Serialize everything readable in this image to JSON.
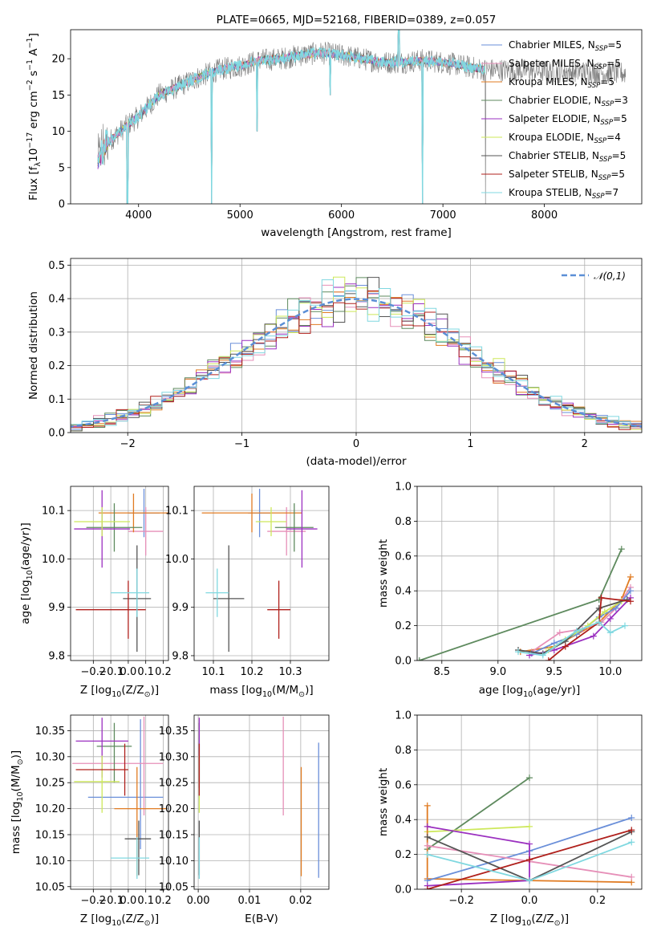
{
  "colors": {
    "chabrier_miles": "#6a8fd9",
    "salpeter_miles": "#e68fb8",
    "kroupa_miles": "#e07b22",
    "chabrier_elodie": "#5e8a5e",
    "salpeter_elodie": "#9b30c0",
    "kroupa_elodie": "#cde85a",
    "chabrier_stelib": "#555555",
    "salpeter_stelib": "#b0201c",
    "kroupa_stelib": "#80d8e0"
  },
  "chart_data": [
    {
      "id": "spectrum",
      "type": "line",
      "title": "PLATE=0665, MJD=52168, FIBERID=0389, z=0.057",
      "xlabel": "wavelength [Angstrom, rest frame]",
      "ylabel_parts": [
        "Flux [f",
        "λ",
        "10",
        "−17",
        " erg cm",
        "−2",
        " s",
        "−1",
        " A",
        "−1",
        "]"
      ],
      "xlim": [
        3330,
        8960
      ],
      "ylim": [
        0,
        24
      ],
      "xticks": [
        4000,
        5000,
        6000,
        7000,
        8000
      ],
      "yticks": [
        0,
        5,
        10,
        15,
        20
      ],
      "grid": false,
      "legend": "top-right",
      "series": [
        {
          "key": "chabrier_miles",
          "name": "Chabrier MILES, N",
          "sub": "SSP",
          "suffix": "=5"
        },
        {
          "key": "salpeter_miles",
          "name": "Salpeter MILES, N",
          "sub": "SSP",
          "suffix": "=5"
        },
        {
          "key": "kroupa_miles",
          "name": "Kroupa MILES, N",
          "sub": "SSP",
          "suffix": "=5"
        },
        {
          "key": "chabrier_elodie",
          "name": "Chabrier ELODIE, N",
          "sub": "SSP",
          "suffix": "=3"
        },
        {
          "key": "salpeter_elodie",
          "name": "Salpeter ELODIE, N",
          "sub": "SSP",
          "suffix": "=5"
        },
        {
          "key": "kroupa_elodie",
          "name": "Kroupa ELODIE, N",
          "sub": "SSP",
          "suffix": "=4"
        },
        {
          "key": "chabrier_stelib",
          "name": "Chabrier STELIB, N",
          "sub": "SSP",
          "suffix": "=5"
        },
        {
          "key": "salpeter_stelib",
          "name": "Salpeter STELIB, N",
          "sub": "SSP",
          "suffix": "=5"
        },
        {
          "key": "kroupa_stelib",
          "name": "Kroupa STELIB, N",
          "sub": "SSP",
          "suffix": "=7"
        }
      ],
      "continuum": {
        "x": [
          3600,
          3700,
          3900,
          4000,
          4200,
          4400,
          4600,
          4800,
          5000,
          5200,
          5400,
          5600,
          5800,
          6000,
          6200,
          6400,
          6600,
          6800,
          7000,
          7200,
          7400
        ],
        "y": [
          6,
          8.5,
          11,
          12,
          15,
          16.2,
          17.5,
          18.5,
          19,
          19.8,
          20,
          20.5,
          20.8,
          20.5,
          20,
          19.5,
          19.5,
          19.8,
          19.5,
          19,
          18.5
        ]
      },
      "data_range": [
        3600,
        8800
      ],
      "model_range": [
        3600,
        7420
      ],
      "dips": [
        {
          "x": 3890,
          "y": 0
        },
        {
          "x": 4720,
          "y": 0
        },
        {
          "x": 5170,
          "y": 10
        },
        {
          "x": 5890,
          "y": 15
        },
        {
          "x": 6800,
          "y": 0
        },
        {
          "x": 7420,
          "y": 0
        }
      ]
    },
    {
      "id": "residuals",
      "type": "line",
      "xlabel": "(data-model)/error",
      "ylabel": "Normed distribution",
      "xlim": [
        -2.5,
        2.5
      ],
      "ylim": [
        0,
        0.52
      ],
      "xticks": [
        -2,
        -1,
        0,
        1,
        2
      ],
      "yticks": [
        0,
        0.1,
        0.2,
        0.3,
        0.4,
        0.5
      ],
      "grid": true,
      "legend": "top-right",
      "reference": {
        "name": "𝒩(0,1)",
        "mu": 0,
        "sigma": 1
      }
    },
    {
      "id": "age_vs_Z",
      "type": "scatter",
      "xlabel_parts": [
        "Z [log",
        "10",
        "(Z/Z",
        "⊙",
        ")]"
      ],
      "ylabel_parts": [
        "age  [log",
        "10",
        "(age/yr)]"
      ],
      "xlim": [
        -0.33,
        0.23
      ],
      "ylim": [
        9.79,
        10.15
      ],
      "xticks": [
        -0.2,
        -0.1,
        0.0,
        0.1,
        0.2
      ],
      "yticks": [
        9.8,
        9.9,
        10.0,
        10.1
      ],
      "grid": true,
      "points": [
        {
          "key": "chabrier_miles",
          "x": 0.09,
          "y": 10.095,
          "xerr": [
            0.09,
            0.09
          ],
          "yerr": [
            0.05,
            0.05
          ]
        },
        {
          "key": "salpeter_miles",
          "x": 0.1,
          "y": 10.057,
          "xerr": [
            0.1,
            0.1
          ],
          "yerr": [
            0.05,
            0.05
          ]
        },
        {
          "key": "kroupa_miles",
          "x": 0.03,
          "y": 10.095,
          "xerr": [
            0.2,
            0.2
          ],
          "yerr": [
            0.04,
            0.04
          ]
        },
        {
          "key": "chabrier_elodie",
          "x": -0.08,
          "y": 10.065,
          "xerr": [
            0.16,
            0.16
          ],
          "yerr": [
            0.05,
            0.05
          ]
        },
        {
          "key": "salpeter_elodie",
          "x": -0.15,
          "y": 10.062,
          "xerr": [
            0.16,
            0.16
          ],
          "yerr": [
            0.08,
            0.08
          ]
        },
        {
          "key": "kroupa_elodie",
          "x": -0.15,
          "y": 10.077,
          "xerr": [
            0.16,
            0.16
          ],
          "yerr": [
            0.03,
            0.03
          ]
        },
        {
          "key": "chabrier_stelib",
          "x": 0.05,
          "y": 9.918,
          "xerr": [
            0.08,
            0.08
          ],
          "yerr": [
            0.11,
            0.11
          ]
        },
        {
          "key": "salpeter_stelib",
          "x": 0.0,
          "y": 9.895,
          "xerr": [
            0.3,
            0.1
          ],
          "yerr": [
            0.06,
            0.06
          ]
        },
        {
          "key": "kroupa_stelib",
          "x": 0.05,
          "y": 9.93,
          "xerr": [
            0.15,
            0.07
          ],
          "yerr": [
            0.05,
            0.05
          ]
        }
      ]
    },
    {
      "id": "age_vs_mass",
      "type": "scatter",
      "xlabel_parts": [
        "mass [log",
        "10",
        "(M/M",
        "⊙",
        ")]"
      ],
      "xlim": [
        10.05,
        10.4
      ],
      "ylim": [
        9.79,
        10.15
      ],
      "xticks": [
        10.1,
        10.2,
        10.3
      ],
      "xtick_labels": [
        "10.1",
        "10.2",
        "10.3"
      ],
      "yticks": [
        9.8,
        9.9,
        10.0,
        10.1
      ],
      "grid": true,
      "points": [
        {
          "key": "chabrier_miles",
          "x": 10.22,
          "y": 10.095,
          "xerr": [
            0.03,
            0.03
          ],
          "yerr": [
            0.05,
            0.05
          ]
        },
        {
          "key": "salpeter_miles",
          "x": 10.29,
          "y": 10.057,
          "xerr": [
            0.05,
            0.05
          ],
          "yerr": [
            0.05,
            0.05
          ]
        },
        {
          "key": "kroupa_miles",
          "x": 10.2,
          "y": 10.095,
          "xerr": [
            0.13,
            0.13
          ],
          "yerr": [
            0.04,
            0.04
          ]
        },
        {
          "key": "chabrier_elodie",
          "x": 10.31,
          "y": 10.065,
          "xerr": [
            0.05,
            0.05
          ],
          "yerr": [
            0.05,
            0.05
          ]
        },
        {
          "key": "salpeter_elodie",
          "x": 10.33,
          "y": 10.062,
          "xerr": [
            0.04,
            0.04
          ],
          "yerr": [
            0.08,
            0.08
          ]
        },
        {
          "key": "kroupa_elodie",
          "x": 10.25,
          "y": 10.077,
          "xerr": [
            0.04,
            0.04
          ],
          "yerr": [
            0.03,
            0.03
          ]
        },
        {
          "key": "chabrier_stelib",
          "x": 10.14,
          "y": 9.918,
          "xerr": [
            0.04,
            0.04
          ],
          "yerr": [
            0.11,
            0.11
          ]
        },
        {
          "key": "salpeter_stelib",
          "x": 10.27,
          "y": 9.895,
          "xerr": [
            0.03,
            0.03
          ],
          "yerr": [
            0.06,
            0.06
          ]
        },
        {
          "key": "kroupa_stelib",
          "x": 10.11,
          "y": 9.93,
          "xerr": [
            0.03,
            0.03
          ],
          "yerr": [
            0.05,
            0.05
          ]
        }
      ]
    },
    {
      "id": "mass_weight_vs_age",
      "type": "line",
      "xlabel_parts": [
        "age  [log",
        "10",
        "(age/yr)]"
      ],
      "ylabel": "mass weight",
      "xlim": [
        8.28,
        10.28
      ],
      "ylim": [
        0,
        1
      ],
      "xticks": [
        8.5,
        9.0,
        9.5,
        10.0
      ],
      "yticks": [
        0,
        0.2,
        0.4,
        0.6,
        0.8,
        1.0
      ],
      "grid": true,
      "series": [
        {
          "key": "chabrier_elodie",
          "x": [
            8.3,
            9.9,
            10.1
          ],
          "y": [
            0.0,
            0.35,
            0.64
          ]
        },
        {
          "key": "kroupa_miles",
          "x": [
            9.2,
            9.5,
            9.7,
            9.9,
            10.1,
            10.18
          ],
          "y": [
            0.05,
            0.08,
            0.15,
            0.22,
            0.35,
            0.48
          ]
        },
        {
          "key": "salpeter_miles",
          "x": [
            9.3,
            9.55,
            9.75,
            9.92,
            10.05,
            10.18
          ],
          "y": [
            0.05,
            0.16,
            0.18,
            0.22,
            0.3,
            0.42
          ]
        },
        {
          "key": "chabrier_miles",
          "x": [
            9.3,
            9.5,
            9.7,
            9.9,
            10.05,
            10.18
          ],
          "y": [
            0.04,
            0.1,
            0.15,
            0.25,
            0.3,
            0.4
          ]
        },
        {
          "key": "salpeter_elodie",
          "x": [
            9.28,
            9.5,
            9.85,
            10.0,
            10.18
          ],
          "y": [
            0.03,
            0.06,
            0.14,
            0.24,
            0.36
          ]
        },
        {
          "key": "kroupa_elodie",
          "x": [
            9.45,
            9.6,
            9.8,
            9.95,
            10.1
          ],
          "y": [
            0.06,
            0.12,
            0.2,
            0.28,
            0.34
          ]
        },
        {
          "key": "chabrier_stelib",
          "x": [
            9.18,
            9.4,
            9.6,
            9.9,
            10.15
          ],
          "y": [
            0.06,
            0.04,
            0.11,
            0.3,
            0.35
          ]
        },
        {
          "key": "salpeter_stelib",
          "x": [
            9.45,
            9.6,
            9.9,
            9.92,
            10.18
          ],
          "y": [
            0.0,
            0.08,
            0.22,
            0.36,
            0.34
          ]
        },
        {
          "key": "kroupa_stelib",
          "x": [
            9.18,
            9.4,
            9.7,
            9.9,
            10.0,
            10.13
          ],
          "y": [
            0.05,
            0.03,
            0.17,
            0.22,
            0.16,
            0.2
          ]
        }
      ]
    },
    {
      "id": "mass_vs_Z",
      "type": "scatter",
      "xlabel_parts": [
        "Z [log",
        "10",
        "(Z/Z",
        "⊙",
        ")]"
      ],
      "ylabel_parts": [
        "mass [log",
        "10",
        "(M/M",
        "⊙",
        ")]"
      ],
      "xlim": [
        -0.33,
        0.23
      ],
      "ylim": [
        10.045,
        10.38
      ],
      "xticks": [
        -0.2,
        -0.1,
        0.0,
        0.1,
        0.2
      ],
      "yticks": [
        10.05,
        10.1,
        10.15,
        10.2,
        10.25,
        10.3,
        10.35
      ],
      "grid": true,
      "points": [
        {
          "key": "chabrier_miles",
          "x": 0.07,
          "y": 10.222,
          "xerr": [
            0.3,
            0.13
          ],
          "yerr": [
            0.1,
            0.15
          ]
        },
        {
          "key": "salpeter_miles",
          "x": 0.09,
          "y": 10.287,
          "xerr": [
            0.41,
            0.11
          ],
          "yerr": [
            0.1,
            0.09
          ]
        },
        {
          "key": "kroupa_miles",
          "x": 0.05,
          "y": 10.2,
          "xerr": [
            0.13,
            0.17
          ],
          "yerr": [
            0.13,
            0.08
          ]
        },
        {
          "key": "chabrier_elodie",
          "x": -0.08,
          "y": 10.32,
          "xerr": [
            0.1,
            0.1
          ],
          "yerr": [
            0.07,
            0.045
          ]
        },
        {
          "key": "salpeter_elodie",
          "x": -0.15,
          "y": 10.33,
          "xerr": [
            0.15,
            0.15
          ],
          "yerr": [
            0.07,
            0.045
          ]
        },
        {
          "key": "kroupa_elodie",
          "x": -0.15,
          "y": 10.252,
          "xerr": [
            0.16,
            0.1
          ],
          "yerr": [
            0.06,
            0.05
          ]
        },
        {
          "key": "chabrier_stelib",
          "x": 0.06,
          "y": 10.142,
          "xerr": [
            0.08,
            0.07
          ],
          "yerr": [
            0.07,
            0.035
          ]
        },
        {
          "key": "salpeter_stelib",
          "x": -0.02,
          "y": 10.275,
          "xerr": [
            0.28,
            0.02
          ],
          "yerr": [
            0.05,
            0.05
          ]
        },
        {
          "key": "kroupa_stelib",
          "x": 0.05,
          "y": 10.105,
          "xerr": [
            0.15,
            0.07
          ],
          "yerr": [
            0.04,
            0.04
          ]
        }
      ]
    },
    {
      "id": "mass_vs_EBV",
      "type": "scatter",
      "xlabel": "E(B-V)",
      "xlim": [
        -0.0008,
        0.0255
      ],
      "ylim": [
        10.045,
        10.38
      ],
      "xticks": [
        0.0,
        0.01,
        0.02
      ],
      "yticks": [
        10.05,
        10.1,
        10.15,
        10.2,
        10.25,
        10.3,
        10.35
      ],
      "grid": true,
      "points": [
        {
          "key": "chabrier_miles",
          "x": 0.0235,
          "y": 10.222,
          "yerr": [
            0.155,
            0.105
          ]
        },
        {
          "key": "salpeter_miles",
          "x": 0.0166,
          "y": 10.287,
          "yerr": [
            0.1,
            0.09
          ]
        },
        {
          "key": "kroupa_miles",
          "x": 0.0201,
          "y": 10.2,
          "yerr": [
            0.13,
            0.08
          ]
        },
        {
          "key": "chabrier_elodie",
          "x": 0.0002,
          "y": 10.32,
          "yerr": [
            0.07,
            0.045
          ]
        },
        {
          "key": "salpeter_elodie",
          "x": 0.0002,
          "y": 10.33,
          "yerr": [
            0.09,
            0.045
          ]
        },
        {
          "key": "kroupa_elodie",
          "x": 0.0002,
          "y": 10.252,
          "yerr": [
            0.06,
            0.05
          ]
        },
        {
          "key": "chabrier_stelib",
          "x": 0.0002,
          "y": 10.142,
          "yerr": [
            0.07,
            0.035
          ]
        },
        {
          "key": "salpeter_stelib",
          "x": 0.0002,
          "y": 10.275,
          "yerr": [
            0.05,
            0.05
          ]
        },
        {
          "key": "kroupa_stelib",
          "x": 0.0002,
          "y": 10.105,
          "yerr": [
            0.04,
            0.04
          ]
        }
      ]
    },
    {
      "id": "mass_weight_vs_Z",
      "type": "line",
      "xlabel_parts": [
        "Z [log",
        "10",
        "(Z/Z",
        "⊙",
        ")]"
      ],
      "ylabel": "mass weight",
      "xlim": [
        -0.33,
        0.33
      ],
      "ylim": [
        0,
        1
      ],
      "xticks": [
        -0.2,
        0.0,
        0.2
      ],
      "yticks": [
        0,
        0.2,
        0.4,
        0.6,
        0.8,
        1.0
      ],
      "grid": true,
      "series": [
        {
          "key": "chabrier_elodie",
          "x": [
            -0.3,
            0.0
          ],
          "y": [
            0.23,
            0.64
          ]
        },
        {
          "key": "kroupa_elodie",
          "x": [
            -0.3,
            0.0
          ],
          "y": [
            0.33,
            0.36
          ]
        },
        {
          "key": "kroupa_miles",
          "x": [
            -0.3,
            -0.3,
            0.3
          ],
          "y": [
            0.48,
            0.06,
            0.04
          ]
        },
        {
          "key": "chabrier_miles",
          "x": [
            -0.3,
            0.0,
            0.3
          ],
          "y": [
            0.05,
            0.22,
            0.41
          ]
        },
        {
          "key": "salpeter_miles",
          "x": [
            -0.3,
            0.3
          ],
          "y": [
            0.25,
            0.07
          ]
        },
        {
          "key": "salpeter_elodie",
          "x": [
            -0.3,
            0.0,
            0.0,
            -0.3
          ],
          "y": [
            0.36,
            0.26,
            0.05,
            0.02
          ]
        },
        {
          "key": "chabrier_stelib",
          "x": [
            -0.3,
            0.0,
            0.3
          ],
          "y": [
            0.3,
            0.05,
            0.33
          ]
        },
        {
          "key": "salpeter_stelib",
          "x": [
            -0.3,
            0.0,
            0.3
          ],
          "y": [
            0.0,
            0.17,
            0.34
          ]
        },
        {
          "key": "kroupa_stelib",
          "x": [
            -0.3,
            0.0,
            0.3
          ],
          "y": [
            0.2,
            0.05,
            0.27
          ]
        }
      ]
    }
  ]
}
